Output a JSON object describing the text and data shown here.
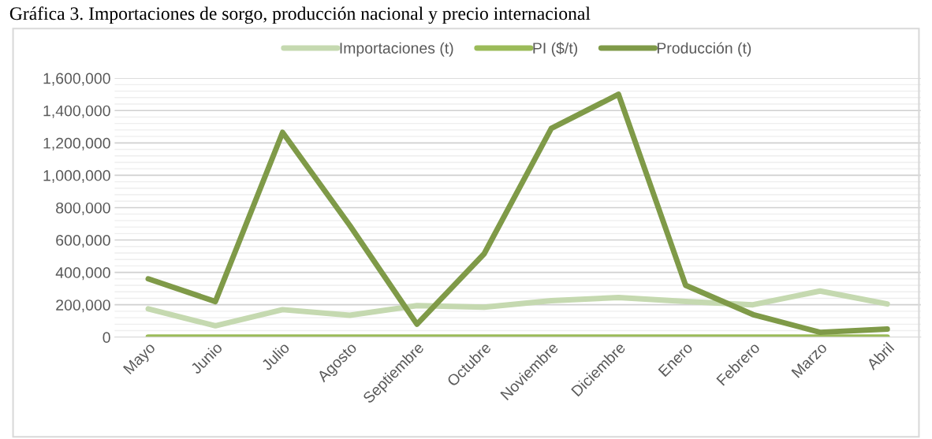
{
  "chart_data": {
    "type": "line",
    "title": "Gráfica 3. Importaciones de sorgo, producción nacional y precio internacional",
    "categories": [
      "Mayo",
      "Junio",
      "Julio",
      "Agosto",
      "Septiembre",
      "Octubre",
      "Noviembre",
      "Diciembre",
      "Enero",
      "Febrero",
      "Marzo",
      "Abril"
    ],
    "series": [
      {
        "name": "Importaciones (t)",
        "color": "#c5d9b0",
        "values": [
          175000,
          70000,
          170000,
          135000,
          195000,
          185000,
          225000,
          245000,
          220000,
          200000,
          285000,
          205000
        ]
      },
      {
        "name": "PI ($/t)",
        "color": "#9bbb59",
        "values": [
          0,
          0,
          0,
          0,
          0,
          0,
          0,
          0,
          0,
          0,
          0,
          0
        ]
      },
      {
        "name": "Producción (t)",
        "color": "#7f9a48",
        "values": [
          360000,
          220000,
          1265000,
          690000,
          80000,
          515000,
          1290000,
          1500000,
          320000,
          140000,
          30000,
          50000
        ]
      }
    ],
    "ylim": [
      0,
      1600000
    ],
    "yticks": [
      {
        "value": 0,
        "label": "0"
      },
      {
        "value": 200000,
        "label": "200,000"
      },
      {
        "value": 400000,
        "label": "400,000"
      },
      {
        "value": 600000,
        "label": "600,000"
      },
      {
        "value": 800000,
        "label": "800,000"
      },
      {
        "value": 1000000,
        "label": "1,000,000"
      },
      {
        "value": 1200000,
        "label": "1,200,000"
      },
      {
        "value": 1400000,
        "label": "1,400,000"
      },
      {
        "value": 1600000,
        "label": "1,600,000"
      }
    ],
    "grid": "y",
    "legend": "top",
    "marker": "none",
    "line_style": "solid"
  }
}
